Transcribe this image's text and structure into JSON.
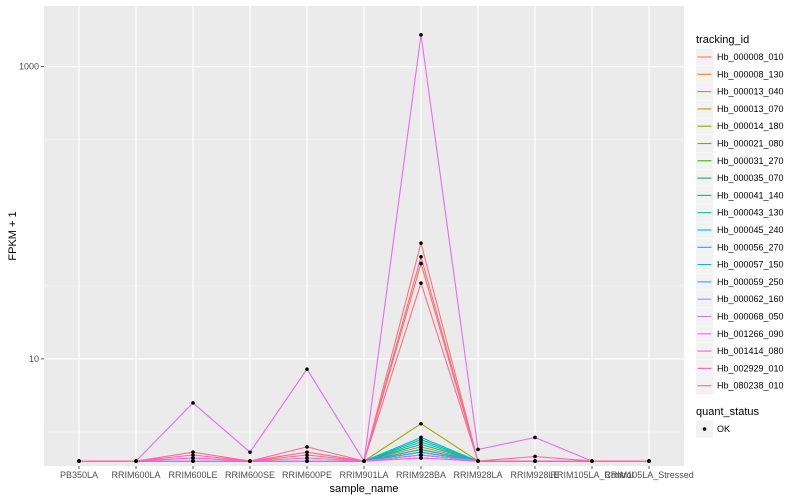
{
  "chart_data": {
    "type": "line",
    "xlabel": "sample_name",
    "ylabel": "FPKM + 1",
    "y_scale": "log10",
    "ylim": [
      1.85,
      2600
    ],
    "yticks": [
      10,
      1000
    ],
    "ytick_labels": [
      "10",
      "1000"
    ],
    "categories": [
      "PB350LA",
      "RRIM600LA",
      "RRIM600LE",
      "RRIM600SE",
      "RRIM600PE",
      "RRIM901LA",
      "RRIM928BA",
      "RRIM928LA",
      "RRIM928LE",
      "RRIM105LA_Control",
      "RRIM105LA_Stressed"
    ],
    "series": [
      {
        "name": "Hb_000008_010",
        "color": "#F8766D",
        "values": [
          2,
          2,
          2,
          2,
          2,
          2,
          62,
          2,
          2,
          2,
          2
        ]
      },
      {
        "name": "Hb_000008_130",
        "color": "#F17D3A",
        "values": [
          2,
          2,
          2.1,
          2,
          2.2,
          2,
          45,
          2,
          2,
          2,
          2
        ]
      },
      {
        "name": "Hb_000013_040",
        "color": "#E58700",
        "values": [
          2,
          2,
          2,
          2,
          2,
          2,
          2.5,
          2,
          2,
          2,
          2
        ]
      },
      {
        "name": "Hb_000013_070",
        "color": "#D39200",
        "values": [
          2,
          2,
          2,
          2,
          2,
          2,
          2.2,
          2,
          2,
          2,
          2
        ]
      },
      {
        "name": "Hb_000014_180",
        "color": "#A3A500",
        "values": [
          2,
          2,
          2,
          2,
          2,
          2,
          3.6,
          2,
          2,
          2,
          2
        ]
      },
      {
        "name": "Hb_000021_080",
        "color": "#7CAE00",
        "values": [
          2,
          2,
          2,
          2,
          2,
          2,
          2.3,
          2,
          2,
          2,
          2
        ]
      },
      {
        "name": "Hb_000031_270",
        "color": "#39B600",
        "values": [
          2,
          2,
          2,
          2,
          2,
          2,
          2.4,
          2,
          2,
          2,
          2
        ]
      },
      {
        "name": "Hb_000035_070",
        "color": "#00BB4E",
        "values": [
          2,
          2,
          2,
          2,
          2,
          2,
          2.2,
          2,
          2,
          2,
          2
        ]
      },
      {
        "name": "Hb_000041_140",
        "color": "#00BF7D",
        "values": [
          2,
          2,
          2,
          2,
          2,
          2,
          2.6,
          2,
          2,
          2,
          2
        ]
      },
      {
        "name": "Hb_000043_130",
        "color": "#00C1A3",
        "values": [
          2,
          2,
          2,
          2,
          2,
          2,
          2.8,
          2,
          2,
          2,
          2
        ]
      },
      {
        "name": "Hb_000045_240",
        "color": "#00BFC4",
        "values": [
          2,
          2,
          2,
          2,
          2,
          2,
          2.9,
          2,
          2,
          2,
          2
        ]
      },
      {
        "name": "Hb_000056_270",
        "color": "#00BAE0",
        "values": [
          2,
          2,
          2,
          2,
          2,
          2,
          2.7,
          2,
          2,
          2,
          2
        ]
      },
      {
        "name": "Hb_000057_150",
        "color": "#00B0F6",
        "values": [
          2,
          2,
          2,
          2,
          2,
          2,
          2.4,
          2,
          2,
          2,
          2
        ]
      },
      {
        "name": "Hb_000059_250",
        "color": "#35A2FF",
        "values": [
          2,
          2,
          2,
          2,
          2,
          2,
          2.3,
          2,
          2,
          2,
          2
        ]
      },
      {
        "name": "Hb_000062_160",
        "color": "#9590FF",
        "values": [
          2,
          2,
          2,
          2,
          2,
          2,
          2.1,
          2,
          2,
          2,
          2
        ]
      },
      {
        "name": "Hb_000068_050",
        "color": "#C77CFF",
        "values": [
          2,
          2,
          2,
          2,
          2,
          2,
          2.2,
          2,
          2,
          2,
          2
        ]
      },
      {
        "name": "Hb_001266_090",
        "color": "#E76BF3",
        "values": [
          2,
          2,
          5,
          2.3,
          8.5,
          2,
          1650,
          2.4,
          2.9,
          2,
          2
        ]
      },
      {
        "name": "Hb_001414_080",
        "color": "#FA62DB",
        "values": [
          2,
          2,
          2.1,
          2,
          2.1,
          2,
          2.1,
          2,
          2,
          2,
          2
        ]
      },
      {
        "name": "Hb_002929_010",
        "color": "#FF62BC",
        "values": [
          2,
          2,
          2.2,
          2,
          2.3,
          2,
          50,
          2,
          2,
          2,
          2
        ]
      },
      {
        "name": "Hb_080238_010",
        "color": "#FF6C91",
        "values": [
          2,
          2,
          2.3,
          2,
          2.5,
          2,
          33,
          2,
          2.15,
          2,
          2
        ]
      }
    ],
    "legend": [
      {
        "title": "tracking_id",
        "position": "right"
      },
      {
        "title": "quant_status",
        "entries": [
          "OK"
        ],
        "position": "right"
      }
    ],
    "grid": true
  }
}
